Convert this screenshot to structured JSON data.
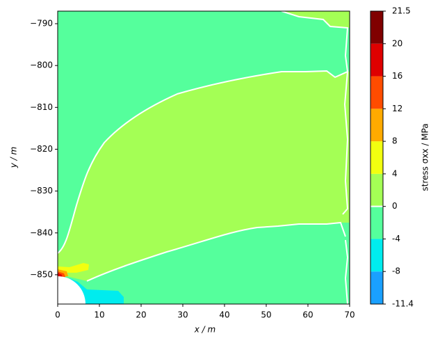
{
  "chart_data": {
    "type": "contour",
    "xlabel": "x / m",
    "ylabel": "y / m",
    "xlim": [
      0,
      70
    ],
    "ylim": [
      -857,
      -787
    ],
    "xticks": [
      0,
      10,
      20,
      30,
      40,
      50,
      60,
      70
    ],
    "yticks": [
      {
        "value": -850,
        "label": "−850"
      },
      {
        "value": -840,
        "label": "−840"
      },
      {
        "value": -830,
        "label": "−830"
      },
      {
        "value": -820,
        "label": "−820"
      },
      {
        "value": -810,
        "label": "−810"
      },
      {
        "value": -800,
        "label": "−800"
      },
      {
        "value": -790,
        "label": "−790"
      }
    ],
    "colorbar": {
      "label": "stress σxx / MPa",
      "levels": [
        -11.4,
        -8,
        -4,
        0,
        4,
        8,
        12,
        16,
        20,
        21.5
      ],
      "colors": [
        "#1aa0ff",
        "#00ecee",
        "#55ff9c",
        "#a4ff55",
        "#f2ff10",
        "#ffaa00",
        "#ff4c00",
        "#de0000",
        "#800000"
      ]
    }
  }
}
